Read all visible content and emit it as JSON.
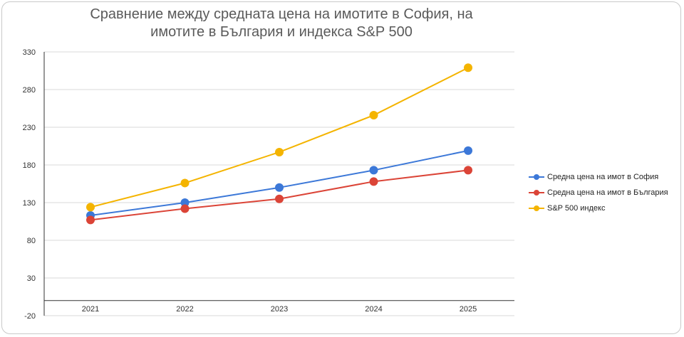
{
  "chart_data": {
    "type": "line",
    "title": "Сравнение между средната цена на имотите в София, на имотите в България и индекса S&P 500",
    "x": [
      "2021",
      "2022",
      "2023",
      "2024",
      "2025"
    ],
    "y_ticks": [
      "330",
      "280",
      "230",
      "180",
      "130",
      "80",
      "30",
      "-20"
    ],
    "ylim": [
      -20,
      330
    ],
    "grid": true,
    "legend_position": "right",
    "series": [
      {
        "name": "Средна цена на имот в София",
        "color": "#3c78d8",
        "values": [
          113,
          130,
          150,
          173,
          199
        ]
      },
      {
        "name": "Средна цена на имот в България",
        "color": "#db4437",
        "values": [
          107,
          122,
          135,
          158,
          173
        ]
      },
      {
        "name": "S&P 500 индекс",
        "color": "#f4b400",
        "values": [
          124,
          156,
          197,
          246,
          309
        ]
      }
    ]
  }
}
